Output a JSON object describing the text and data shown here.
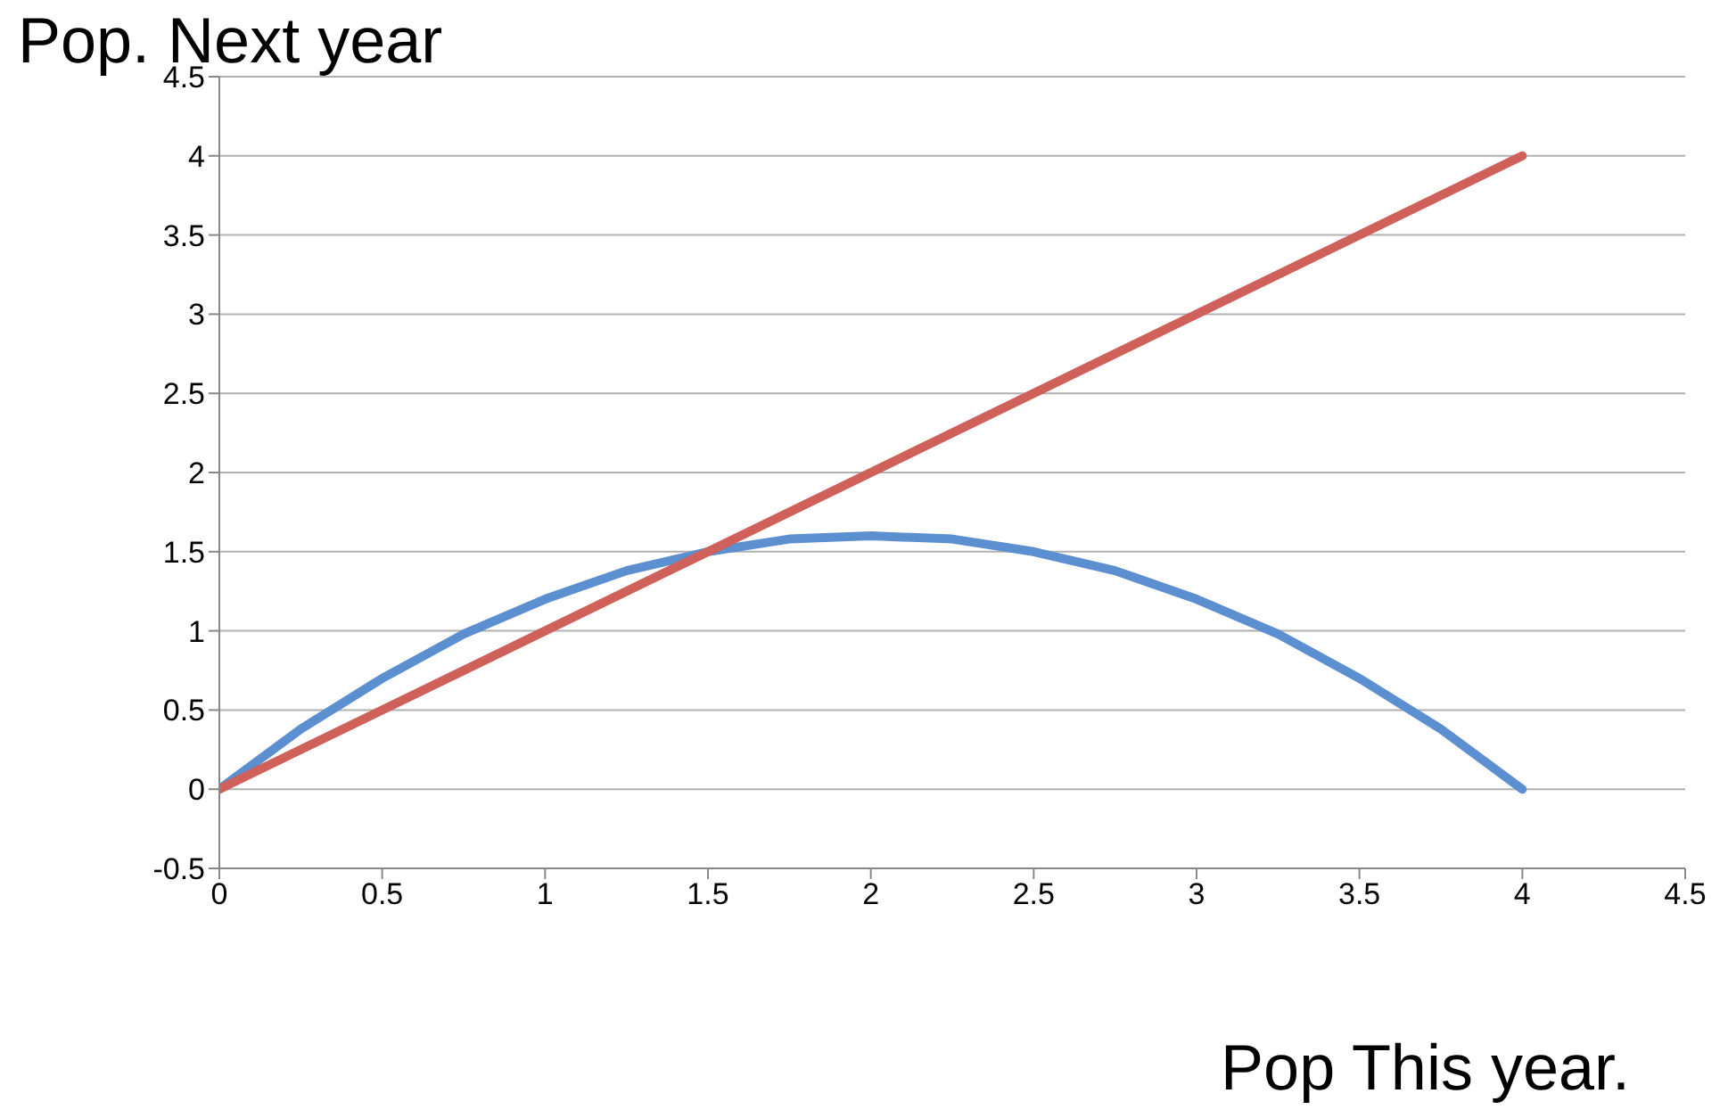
{
  "chart_data": {
    "type": "line",
    "xlabel": "Pop This year.",
    "ylabel": "Pop. Next year",
    "xlim": [
      0,
      4.5
    ],
    "xticks": [
      0,
      0.5,
      1,
      1.5,
      2,
      2.5,
      3,
      3.5,
      4,
      4.5
    ],
    "ylim": [
      -0.5,
      4.5
    ],
    "yticks": [
      -0.5,
      0,
      0.5,
      1,
      1.5,
      2,
      2.5,
      3,
      3.5,
      4,
      4.5
    ],
    "grid": "y",
    "legend": false,
    "series": [
      {
        "color": "#5b8fcf",
        "x": [
          0,
          0.25,
          0.5,
          0.75,
          1,
          1.25,
          1.5,
          1.75,
          2,
          2.25,
          2.5,
          2.75,
          3,
          3.25,
          3.5,
          3.75,
          4
        ],
        "values": [
          0,
          0.38,
          0.7,
          0.98,
          1.2,
          1.38,
          1.5,
          1.58,
          1.6,
          1.58,
          1.5,
          1.38,
          1.2,
          0.98,
          0.7,
          0.38,
          0
        ]
      },
      {
        "color": "#d0605a",
        "x": [
          0,
          4
        ],
        "values": [
          0,
          4
        ]
      }
    ]
  }
}
